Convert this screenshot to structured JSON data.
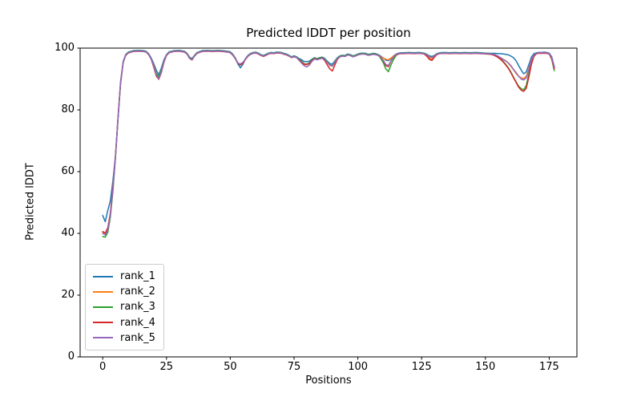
{
  "figure": {
    "background_color": "#ffffff",
    "spine_color": "#000000",
    "text_color": "#000000"
  },
  "chart_data": {
    "type": "line",
    "title": "Predicted lDDT per position",
    "xlabel": "Positions",
    "ylabel": "Predicted lDDT",
    "xlim": [
      -8.85,
      185.85
    ],
    "ylim": [
      0,
      100
    ],
    "x_ticks": [
      0,
      25,
      50,
      75,
      100,
      125,
      150,
      175
    ],
    "y_ticks": [
      0,
      20,
      40,
      60,
      80,
      100
    ],
    "grid": false,
    "legend_position": "lower left",
    "x": [
      0,
      1,
      2,
      3,
      4,
      5,
      6,
      7,
      8,
      9,
      10,
      12,
      14,
      16,
      17,
      18,
      19,
      20,
      21,
      22,
      23,
      24,
      25,
      26,
      28,
      30,
      32,
      33,
      34,
      35,
      36,
      37,
      39,
      41,
      43,
      45,
      47,
      49,
      50,
      51,
      52,
      53,
      54,
      55,
      56,
      57,
      58,
      59,
      60,
      61,
      62,
      63,
      64,
      65,
      66,
      67,
      68,
      69,
      70,
      71,
      72,
      73,
      74,
      75,
      76,
      77,
      78,
      79,
      80,
      81,
      82,
      83,
      84,
      85,
      86,
      87,
      88,
      89,
      90,
      91,
      92,
      93,
      94,
      95,
      96,
      97,
      98,
      99,
      100,
      101,
      102,
      103,
      104,
      105,
      106,
      107,
      108,
      109,
      110,
      111,
      112,
      113,
      114,
      115,
      116,
      117,
      118,
      120,
      122,
      124,
      126,
      127,
      128,
      129,
      130,
      131,
      132,
      134,
      136,
      138,
      140,
      142,
      144,
      146,
      148,
      150,
      152,
      153,
      154,
      155,
      156,
      157,
      158,
      159,
      160,
      161,
      162,
      163,
      164,
      165,
      166,
      167,
      168,
      169,
      170,
      171,
      172,
      173,
      174,
      175,
      176,
      177
    ],
    "series": [
      {
        "name": "rank_1",
        "color": "#1f77b4",
        "values": [
          45.8,
          43.8,
          47.5,
          50.5,
          57,
          65.2,
          77.7,
          89.2,
          95.7,
          97.9,
          98.7,
          99.2,
          99.3,
          99.2,
          99.0,
          98.2,
          96.8,
          95.0,
          92.8,
          91.4,
          93.6,
          96.2,
          97.9,
          98.8,
          99.2,
          99.3,
          99.0,
          98.4,
          97.1,
          96.6,
          97.7,
          98.6,
          99.2,
          99.3,
          99.2,
          99.3,
          99.2,
          99.0,
          98.8,
          98.0,
          96.8,
          94.8,
          93.6,
          94.8,
          96.7,
          97.7,
          98.3,
          98.6,
          98.7,
          98.4,
          97.9,
          97.6,
          98.0,
          98.4,
          98.6,
          98.5,
          98.7,
          98.7,
          98.6,
          98.3,
          98.1,
          97.7,
          97.2,
          97.5,
          97.2,
          96.6,
          96.2,
          95.7,
          95.6,
          95.8,
          96.4,
          96.9,
          96.6,
          96.9,
          97.1,
          96.7,
          95.8,
          95.0,
          94.8,
          95.9,
          96.9,
          97.5,
          97.7,
          97.6,
          98.1,
          97.9,
          97.5,
          97.7,
          98.1,
          98.3,
          98.4,
          98.3,
          98.0,
          98.1,
          98.3,
          98.2,
          97.9,
          97.4,
          96.8,
          96.1,
          95.9,
          96.6,
          97.5,
          98.1,
          98.4,
          98.5,
          98.5,
          98.6,
          98.5,
          98.6,
          98.4,
          98.0,
          97.5,
          97.3,
          97.7,
          98.2,
          98.5,
          98.6,
          98.5,
          98.6,
          98.5,
          98.6,
          98.5,
          98.6,
          98.5,
          98.4,
          98.3,
          98.3,
          98.3,
          98.2,
          98.2,
          98.1,
          98.0,
          97.8,
          97.4,
          96.9,
          95.9,
          94.4,
          92.9,
          91.7,
          92.3,
          94.6,
          97.1,
          98.2,
          98.5,
          98.6,
          98.6,
          98.7,
          98.6,
          98.4,
          97.2,
          94.0
        ]
      },
      {
        "name": "rank_2",
        "color": "#ff7f0e",
        "values": [
          40.3,
          39.9,
          41.6,
          46.3,
          55.0,
          64.9,
          77.4,
          88.9,
          95.4,
          97.7,
          98.5,
          99.0,
          99.1,
          99.0,
          98.8,
          98.0,
          96.5,
          94.5,
          91.8,
          90.6,
          92.8,
          95.7,
          97.7,
          98.6,
          99.0,
          99.1,
          98.8,
          98.2,
          96.8,
          96.1,
          97.5,
          98.4,
          99.0,
          99.1,
          99.0,
          99.1,
          99.0,
          98.8,
          98.6,
          97.8,
          96.6,
          95.1,
          94.7,
          95.2,
          96.5,
          97.5,
          98.1,
          98.4,
          98.5,
          98.2,
          97.7,
          97.4,
          97.8,
          98.2,
          98.4,
          98.3,
          98.5,
          98.5,
          98.4,
          98.1,
          97.9,
          97.5,
          97.0,
          97.3,
          97.0,
          96.3,
          95.5,
          94.7,
          94.6,
          95.1,
          96.1,
          96.7,
          96.4,
          96.7,
          96.9,
          96.4,
          95.5,
          94.4,
          94.1,
          95.5,
          96.7,
          97.3,
          97.5,
          97.4,
          97.9,
          97.7,
          97.3,
          97.5,
          97.9,
          98.1,
          98.2,
          98.1,
          97.8,
          97.9,
          98.1,
          98.0,
          97.7,
          97.2,
          96.8,
          96.4,
          96.2,
          96.8,
          97.4,
          98.0,
          98.2,
          98.3,
          98.3,
          98.4,
          98.3,
          98.4,
          98.2,
          97.8,
          96.7,
          96.4,
          97.4,
          98.0,
          98.3,
          98.4,
          98.3,
          98.4,
          98.3,
          98.4,
          98.3,
          98.4,
          98.3,
          98.2,
          98.1,
          98.0,
          97.8,
          97.3,
          96.9,
          96.4,
          95.9,
          95.1,
          94.1,
          93.0,
          91.8,
          90.9,
          90.4,
          90.1,
          90.9,
          93.3,
          96.3,
          97.7,
          98.3,
          98.4,
          98.4,
          98.5,
          98.4,
          98.2,
          96.6,
          93.5
        ]
      },
      {
        "name": "rank_3",
        "color": "#2ca02c",
        "values": [
          39.0,
          38.8,
          40.4,
          45.2,
          53.5,
          64.5,
          77.0,
          88.5,
          95.3,
          97.8,
          98.6,
          99.1,
          99.2,
          99.1,
          98.9,
          98.1,
          96.6,
          94.3,
          91.7,
          90.8,
          92.7,
          95.8,
          97.8,
          98.7,
          99.1,
          99.2,
          98.9,
          98.3,
          96.9,
          96.4,
          97.6,
          98.5,
          99.1,
          99.2,
          99.1,
          99.2,
          99.1,
          98.9,
          98.7,
          97.9,
          96.7,
          95.2,
          94.5,
          95.3,
          96.6,
          97.6,
          98.2,
          98.5,
          98.6,
          98.3,
          97.8,
          97.5,
          97.9,
          98.3,
          98.5,
          98.4,
          98.6,
          98.6,
          98.5,
          98.2,
          98.0,
          97.6,
          97.1,
          97.4,
          97.1,
          96.4,
          95.7,
          94.9,
          94.8,
          95.3,
          96.2,
          96.8,
          96.5,
          96.8,
          97.0,
          96.5,
          95.6,
          94.6,
          94.3,
          95.6,
          96.8,
          97.4,
          97.6,
          97.5,
          98.0,
          97.8,
          97.4,
          97.6,
          98.0,
          98.2,
          98.3,
          98.2,
          97.9,
          98.0,
          98.2,
          98.1,
          97.8,
          96.6,
          95.2,
          93.2,
          92.4,
          94.6,
          96.4,
          97.6,
          98.2,
          98.4,
          98.4,
          98.5,
          98.4,
          98.5,
          98.3,
          97.9,
          97.3,
          97.0,
          97.6,
          98.1,
          98.4,
          98.5,
          98.4,
          98.5,
          98.4,
          98.5,
          98.4,
          98.5,
          98.4,
          98.3,
          98.2,
          98.0,
          97.6,
          97.1,
          96.5,
          95.7,
          94.7,
          93.6,
          92.2,
          90.6,
          89.1,
          87.7,
          86.9,
          86.5,
          87.9,
          91.6,
          95.3,
          97.5,
          98.4,
          98.5,
          98.5,
          98.6,
          98.5,
          98.3,
          96.3,
          92.7
        ]
      },
      {
        "name": "rank_4",
        "color": "#d62728",
        "values": [
          40.6,
          40.1,
          41.9,
          46.6,
          54.8,
          64.8,
          77.3,
          88.8,
          95.3,
          97.6,
          98.4,
          98.9,
          99.0,
          98.9,
          98.7,
          97.9,
          96.4,
          93.8,
          90.9,
          89.9,
          92.1,
          95.4,
          97.6,
          98.5,
          98.9,
          99.0,
          98.7,
          98.1,
          96.7,
          96.2,
          97.4,
          98.3,
          98.9,
          99.0,
          98.9,
          99.0,
          98.9,
          98.7,
          98.5,
          97.7,
          96.5,
          95.0,
          94.6,
          95.1,
          96.4,
          97.4,
          98.0,
          98.3,
          98.4,
          98.1,
          97.6,
          97.3,
          97.7,
          98.1,
          98.3,
          98.2,
          98.4,
          98.4,
          98.3,
          98.0,
          97.8,
          97.4,
          96.9,
          97.2,
          96.9,
          96.2,
          95.4,
          94.8,
          94.7,
          95.0,
          96.0,
          96.6,
          96.3,
          96.6,
          96.8,
          96.0,
          94.6,
          93.3,
          92.6,
          94.6,
          96.4,
          97.2,
          97.4,
          97.3,
          97.8,
          97.6,
          97.2,
          97.4,
          97.8,
          98.0,
          98.1,
          98.0,
          97.7,
          97.8,
          98.0,
          97.9,
          97.6,
          97.0,
          95.9,
          94.3,
          94.0,
          95.8,
          97.1,
          97.8,
          98.1,
          98.2,
          98.2,
          98.3,
          98.2,
          98.3,
          98.1,
          97.4,
          96.4,
          96.0,
          97.1,
          97.9,
          98.2,
          98.3,
          98.2,
          98.3,
          98.2,
          98.3,
          98.2,
          98.3,
          98.2,
          98.1,
          98.0,
          97.8,
          97.4,
          96.9,
          96.3,
          95.5,
          94.5,
          93.4,
          92.0,
          90.4,
          88.9,
          87.4,
          86.4,
          86.0,
          87.0,
          90.6,
          94.7,
          97.3,
          98.2,
          98.3,
          98.3,
          98.4,
          98.3,
          98.1,
          96.5,
          93.3
        ]
      },
      {
        "name": "rank_5",
        "color": "#9467bd",
        "values": [
          40.0,
          39.5,
          41.1,
          45.9,
          54.3,
          64.9,
          77.4,
          88.9,
          95.4,
          97.7,
          98.5,
          99.0,
          99.1,
          99.0,
          98.8,
          98.0,
          96.5,
          94.2,
          91.2,
          90.1,
          92.3,
          95.6,
          97.7,
          98.6,
          99.0,
          99.1,
          98.8,
          98.2,
          96.8,
          96.2,
          97.5,
          98.4,
          99.0,
          99.1,
          99.0,
          99.1,
          99.0,
          98.8,
          98.6,
          97.8,
          96.6,
          95.1,
          94.9,
          95.4,
          96.5,
          97.5,
          98.1,
          98.4,
          98.5,
          98.2,
          97.7,
          97.4,
          97.8,
          98.2,
          98.4,
          98.3,
          98.5,
          98.5,
          98.4,
          98.1,
          97.9,
          97.5,
          97.0,
          97.3,
          97.0,
          96.0,
          95.1,
          94.3,
          93.9,
          94.5,
          95.7,
          96.5,
          96.2,
          96.5,
          96.7,
          96.3,
          95.4,
          94.5,
          94.2,
          95.4,
          96.6,
          97.2,
          97.4,
          97.3,
          97.8,
          97.6,
          97.2,
          97.4,
          97.8,
          98.0,
          98.1,
          98.0,
          97.7,
          97.8,
          98.0,
          97.9,
          97.6,
          97.1,
          96.0,
          94.7,
          94.4,
          95.9,
          97.2,
          97.9,
          98.2,
          98.3,
          98.3,
          98.4,
          98.3,
          98.4,
          98.2,
          97.8,
          97.2,
          96.9,
          97.5,
          98.0,
          98.3,
          98.4,
          98.3,
          98.4,
          98.3,
          98.4,
          98.3,
          98.4,
          98.3,
          98.2,
          98.1,
          98.0,
          97.8,
          97.4,
          96.8,
          96.3,
          95.8,
          95.2,
          94.3,
          93.1,
          92.1,
          90.9,
          90.0,
          89.7,
          90.4,
          92.9,
          96.1,
          97.8,
          98.4,
          98.5,
          98.5,
          98.6,
          98.5,
          98.3,
          96.9,
          93.9
        ]
      }
    ]
  }
}
